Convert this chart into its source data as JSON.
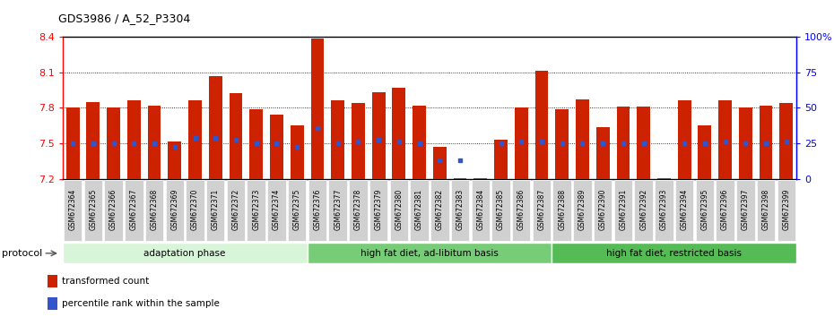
{
  "title": "GDS3986 / A_52_P3304",
  "samples": [
    "GSM672364",
    "GSM672365",
    "GSM672366",
    "GSM672367",
    "GSM672368",
    "GSM672369",
    "GSM672370",
    "GSM672371",
    "GSM672372",
    "GSM672373",
    "GSM672374",
    "GSM672375",
    "GSM672376",
    "GSM672377",
    "GSM672378",
    "GSM672379",
    "GSM672380",
    "GSM672381",
    "GSM672382",
    "GSM672383",
    "GSM672384",
    "GSM672385",
    "GSM672386",
    "GSM672387",
    "GSM672388",
    "GSM672389",
    "GSM672390",
    "GSM672391",
    "GSM672392",
    "GSM672393",
    "GSM672394",
    "GSM672395",
    "GSM672396",
    "GSM672397",
    "GSM672398",
    "GSM672399"
  ],
  "bar_values": [
    7.8,
    7.85,
    7.8,
    7.86,
    7.82,
    7.52,
    7.86,
    8.07,
    7.92,
    7.79,
    7.74,
    7.65,
    8.38,
    7.86,
    7.84,
    7.93,
    7.97,
    7.82,
    7.47,
    7.21,
    7.21,
    7.53,
    7.8,
    8.11,
    7.79,
    7.87,
    7.64,
    7.81,
    7.81,
    7.21,
    7.86,
    7.65,
    7.86,
    7.8,
    7.82,
    7.84
  ],
  "blue_dot_values": [
    7.5,
    7.5,
    7.5,
    7.5,
    7.5,
    7.47,
    7.55,
    7.55,
    7.53,
    7.5,
    7.5,
    7.47,
    7.63,
    7.5,
    7.52,
    7.53,
    7.52,
    7.5,
    7.36,
    7.36,
    null,
    7.5,
    7.52,
    7.52,
    7.5,
    7.5,
    7.5,
    7.5,
    7.5,
    null,
    7.5,
    7.5,
    7.52,
    7.5,
    7.5,
    7.52
  ],
  "ymin": 7.2,
  "ymax": 8.4,
  "yticks_left": [
    7.2,
    7.5,
    7.8,
    8.1,
    8.4
  ],
  "yticks_right": [
    0,
    25,
    50,
    75,
    100
  ],
  "yticks_right_labels": [
    "0",
    "25",
    "50",
    "75",
    "100%"
  ],
  "dotted_lines": [
    7.5,
    7.8,
    8.1
  ],
  "bar_color": "#cc2200",
  "dot_color": "#3355cc",
  "groups": [
    {
      "label": "adaptation phase",
      "start": 0,
      "end": 12,
      "color": "#d9f5d9"
    },
    {
      "label": "high fat diet, ad-libitum basis",
      "start": 12,
      "end": 24,
      "color": "#77cc77"
    },
    {
      "label": "high fat diet, restricted basis",
      "start": 24,
      "end": 36,
      "color": "#55bb55"
    }
  ],
  "protocol_label": "protocol",
  "legend_items": [
    {
      "color": "#cc2200",
      "label": "transformed count"
    },
    {
      "color": "#3355cc",
      "label": "percentile rank within the sample"
    }
  ]
}
